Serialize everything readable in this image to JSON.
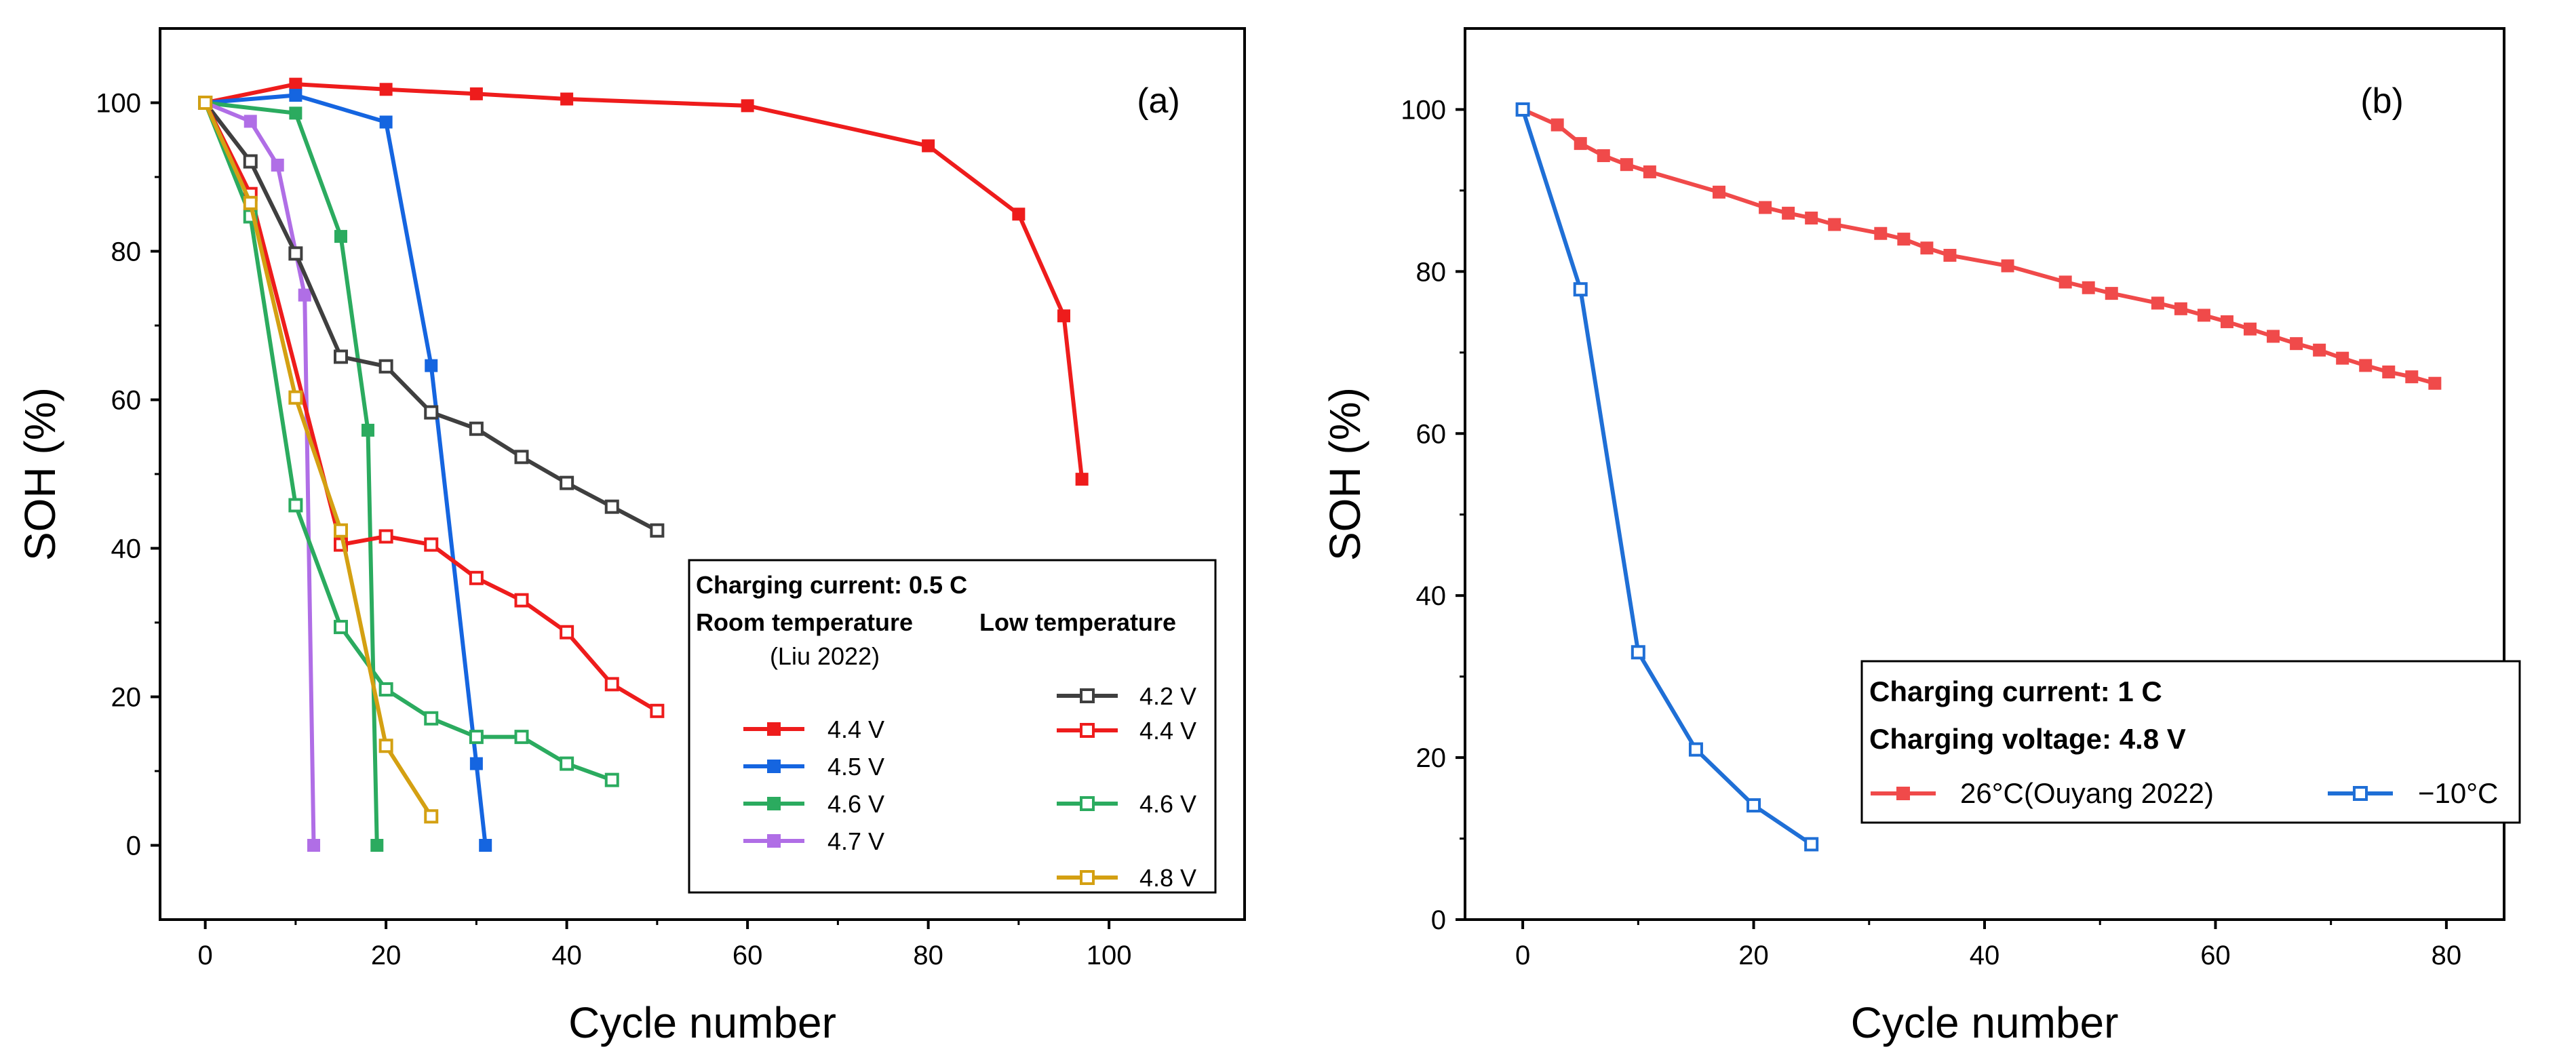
{
  "chart_data": [
    {
      "type": "line",
      "panel_label": "(a)",
      "xlabel": "Cycle number",
      "ylabel": "SOH (%)",
      "xlim": [
        -5,
        115
      ],
      "ylim": [
        -10,
        110
      ],
      "xticks": [
        0,
        20,
        40,
        60,
        80,
        100
      ],
      "yticks": [
        0,
        20,
        40,
        60,
        80,
        100
      ],
      "legend": {
        "title": "Charging current: 0.5 C",
        "room_header": "Room temperature",
        "room_sub": "(Liu 2022)",
        "low_header": "Low temperature"
      },
      "series": [
        {
          "name": "4.4 V",
          "group": "room",
          "color": "#ee1c1c",
          "filled": true,
          "x": [
            0,
            10,
            20,
            30,
            40,
            60,
            80,
            90,
            95,
            97
          ],
          "y": [
            100,
            102.5,
            101.8,
            101.2,
            100.5,
            99.6,
            94.2,
            85,
            71.3,
            49.3
          ]
        },
        {
          "name": "4.5 V",
          "group": "room",
          "color": "#1565e0",
          "filled": true,
          "x": [
            0,
            10,
            20,
            25,
            30,
            31
          ],
          "y": [
            100,
            101,
            97.4,
            64.6,
            11,
            0
          ]
        },
        {
          "name": "4.6 V",
          "group": "room",
          "color": "#2bab5f",
          "filled": true,
          "x": [
            0,
            10,
            15,
            18,
            19
          ],
          "y": [
            100,
            98.6,
            82,
            55.9,
            0
          ]
        },
        {
          "name": "4.7 V",
          "group": "room",
          "color": "#b06ee6",
          "filled": true,
          "x": [
            0,
            5,
            8,
            11,
            12
          ],
          "y": [
            100,
            97.5,
            91.6,
            74.1,
            0
          ]
        },
        {
          "name": "4.2 V",
          "group": "low",
          "color": "#3f3f3f",
          "filled": false,
          "x": [
            0,
            5,
            10,
            15,
            20,
            25,
            30,
            35,
            40,
            45,
            50
          ],
          "y": [
            100,
            92.1,
            79.7,
            65.8,
            64.5,
            58.3,
            56.1,
            52.3,
            48.8,
            45.6,
            42.4
          ]
        },
        {
          "name": "4.4 V",
          "group": "low",
          "color": "#ee1c1c",
          "filled": false,
          "x": [
            0,
            5,
            15,
            20,
            25,
            30,
            35,
            40,
            45,
            50
          ],
          "y": [
            100,
            87.7,
            40.5,
            41.6,
            40.5,
            36,
            33,
            28.7,
            21.7,
            18.1
          ]
        },
        {
          "name": "4.6 V",
          "group": "low",
          "color": "#2bab5f",
          "filled": false,
          "x": [
            0,
            5,
            10,
            15,
            20,
            25,
            30,
            35,
            40,
            45
          ],
          "y": [
            100,
            84.7,
            45.8,
            29.4,
            21,
            17.1,
            14.6,
            14.6,
            11,
            8.8
          ]
        },
        {
          "name": "4.8 V",
          "group": "low",
          "color": "#d4a012",
          "filled": false,
          "x": [
            0,
            5,
            10,
            15,
            20,
            25
          ],
          "y": [
            100,
            86.5,
            60.3,
            42.4,
            13.4,
            3.9
          ]
        }
      ]
    },
    {
      "type": "line",
      "panel_label": "(b)",
      "xlabel": "Cycle number",
      "ylabel": "SOH (%)",
      "xlim": [
        -5,
        85
      ],
      "ylim": [
        0,
        110
      ],
      "xticks": [
        0,
        20,
        40,
        60,
        80
      ],
      "yticks": [
        0,
        20,
        40,
        60,
        80,
        100
      ],
      "legend": {
        "line1": "Charging current: 1 C",
        "line2": "Charging voltage: 4.8 V"
      },
      "series": [
        {
          "name": "26°C(Ouyang 2022)",
          "color": "#f04a4a",
          "filled": true,
          "x": [
            0,
            3,
            5,
            7,
            9,
            11,
            17,
            21,
            23,
            25,
            27,
            31,
            33,
            35,
            37,
            42,
            47,
            49,
            51,
            55,
            57,
            59,
            61,
            63,
            65,
            67,
            69,
            71,
            73,
            75,
            77,
            79
          ],
          "y": [
            100,
            98.1,
            95.8,
            94.3,
            93.2,
            92.3,
            89.8,
            87.9,
            87.2,
            86.6,
            85.8,
            84.7,
            84,
            82.9,
            82,
            80.7,
            78.7,
            78,
            77.3,
            76.1,
            75.4,
            74.6,
            73.8,
            72.9,
            72,
            71.1,
            70.3,
            69.3,
            68.4,
            67.6,
            67,
            66.2
          ]
        },
        {
          "name": "−10°C",
          "color": "#1f6fd6",
          "filled": false,
          "x": [
            0,
            5,
            10,
            15,
            20,
            25
          ],
          "y": [
            100,
            77.8,
            33,
            21,
            14.1,
            9.3
          ]
        }
      ]
    }
  ]
}
